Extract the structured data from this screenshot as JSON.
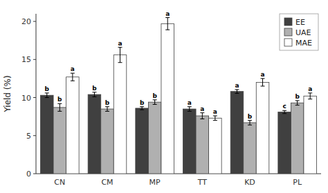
{
  "chart_data": {
    "type": "bar",
    "categories": [
      "CN",
      "CM",
      "MP",
      "TT",
      "KD",
      "PL"
    ],
    "series": [
      {
        "name": "EE",
        "color": "#404040",
        "values": [
          10.3,
          10.4,
          8.6,
          8.5,
          10.8,
          8.1
        ],
        "errors": [
          0.3,
          0.3,
          0.2,
          0.3,
          0.25,
          0.2
        ],
        "labels": [
          "b",
          "b",
          "b",
          "a",
          "a",
          "c"
        ]
      },
      {
        "name": "UAE",
        "color": "#b0b0b0",
        "values": [
          8.7,
          8.5,
          9.4,
          7.6,
          6.7,
          9.3
        ],
        "errors": [
          0.5,
          0.3,
          0.3,
          0.4,
          0.3,
          0.3
        ],
        "labels": [
          "b",
          "b",
          "b",
          "a",
          "b",
          "b"
        ]
      },
      {
        "name": "MAE",
        "color": "white",
        "values": [
          12.7,
          15.6,
          19.7,
          7.3,
          12.0,
          10.2
        ],
        "errors": [
          0.5,
          1.0,
          0.8,
          0.3,
          0.5,
          0.4
        ],
        "labels": [
          "a",
          "a",
          "a",
          "a",
          "a",
          "a"
        ]
      }
    ],
    "ylabel": "Yield (%)",
    "ylim": [
      0,
      21
    ],
    "yticks": [
      0,
      5,
      10,
      15,
      20
    ],
    "grid": false,
    "legend": "upper right"
  }
}
